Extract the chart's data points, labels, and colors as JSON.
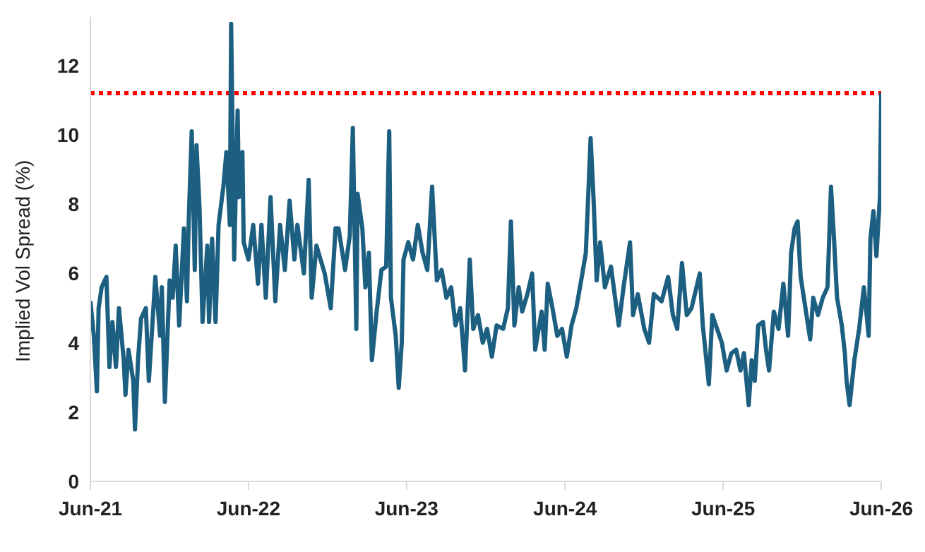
{
  "chart_data": {
    "type": "line",
    "ylabel": "Implied Vol Spread (%)",
    "x": [
      "2021-06-01",
      "2021-06-09",
      "2021-06-16",
      "2021-06-20",
      "2021-06-27",
      "2021-07-08",
      "2021-07-15",
      "2021-07-22",
      "2021-07-30",
      "2021-08-06",
      "2021-08-17",
      "2021-08-21",
      "2021-08-28",
      "2021-09-08",
      "2021-09-12",
      "2021-09-19",
      "2021-09-26",
      "2021-10-07",
      "2021-10-14",
      "2021-10-22",
      "2021-10-29",
      "2021-11-09",
      "2021-11-13",
      "2021-11-20",
      "2021-12-01",
      "2021-12-08",
      "2021-12-15",
      "2021-12-23",
      "2022-01-03",
      "2022-01-10",
      "2022-01-14",
      "2022-01-21",
      "2022-01-28",
      "2022-02-01",
      "2022-02-08",
      "2022-02-15",
      "2022-02-26",
      "2022-03-02",
      "2022-03-09",
      "2022-03-17",
      "2022-03-24",
      "2022-04-04",
      "2022-04-11",
      "2022-04-19",
      "2022-04-22",
      "2022-04-29",
      "2022-05-07",
      "2022-05-10",
      "2022-05-18",
      "2022-05-21",
      "2022-06-01",
      "2022-06-12",
      "2022-06-23",
      "2022-07-01",
      "2022-07-11",
      "2022-07-22",
      "2022-08-02",
      "2022-08-13",
      "2022-08-24",
      "2022-09-04",
      "2022-09-15",
      "2022-09-22",
      "2022-10-07",
      "2022-10-18",
      "2022-10-25",
      "2022-11-05",
      "2022-11-24",
      "2022-12-08",
      "2022-12-19",
      "2022-12-26",
      "2023-01-10",
      "2023-01-21",
      "2023-01-28",
      "2023-02-05",
      "2023-02-08",
      "2023-02-19",
      "2023-02-26",
      "2023-03-06",
      "2023-03-13",
      "2023-03-24",
      "2023-04-04",
      "2023-04-15",
      "2023-04-22",
      "2023-04-26",
      "2023-05-07",
      "2023-05-14",
      "2023-05-21",
      "2023-05-25",
      "2023-06-05",
      "2023-06-16",
      "2023-06-27",
      "2023-07-08",
      "2023-07-19",
      "2023-07-30",
      "2023-08-10",
      "2023-08-21",
      "2023-09-01",
      "2023-09-12",
      "2023-09-22",
      "2023-10-03",
      "2023-10-14",
      "2023-10-25",
      "2023-11-02",
      "2023-11-13",
      "2023-11-24",
      "2023-12-04",
      "2023-12-15",
      "2023-12-26",
      "2024-01-10",
      "2024-01-21",
      "2024-01-28",
      "2024-02-05",
      "2024-02-15",
      "2024-02-23",
      "2024-03-06",
      "2024-03-17",
      "2024-03-24",
      "2024-04-08",
      "2024-04-15",
      "2024-04-22",
      "2024-05-03",
      "2024-05-14",
      "2024-05-25",
      "2024-06-05",
      "2024-06-16",
      "2024-06-27",
      "2024-07-11",
      "2024-07-19",
      "2024-07-30",
      "2024-08-06",
      "2024-08-13",
      "2024-08-21",
      "2024-09-01",
      "2024-09-15",
      "2024-10-03",
      "2024-10-14",
      "2024-10-29",
      "2024-11-05",
      "2024-11-16",
      "2024-12-01",
      "2024-12-12",
      "2024-12-23",
      "2025-01-10",
      "2025-01-25",
      "2025-02-05",
      "2025-02-15",
      "2025-02-26",
      "2025-03-09",
      "2025-03-20",
      "2025-04-08",
      "2025-04-15",
      "2025-04-29",
      "2025-05-07",
      "2025-05-18",
      "2025-05-29",
      "2025-06-09",
      "2025-06-20",
      "2025-07-01",
      "2025-07-11",
      "2025-07-19",
      "2025-07-30",
      "2025-08-06",
      "2025-08-13",
      "2025-08-21",
      "2025-09-01",
      "2025-09-08",
      "2025-09-15",
      "2025-09-26",
      "2025-10-07",
      "2025-10-18",
      "2025-10-29",
      "2025-11-05",
      "2025-11-13",
      "2025-11-20",
      "2025-11-27",
      "2025-12-08",
      "2025-12-19",
      "2025-12-26",
      "2026-01-06",
      "2026-01-17",
      "2026-01-28",
      "2026-02-05",
      "2026-02-12",
      "2026-02-19",
      "2026-03-02",
      "2026-03-09",
      "2026-03-13",
      "2026-03-20",
      "2026-03-31",
      "2026-04-11",
      "2026-04-22",
      "2026-05-03",
      "2026-05-07",
      "2026-05-14",
      "2026-05-21",
      "2026-05-25",
      "2026-05-29",
      "2026-06-01"
    ],
    "series": [
      {
        "color": "#1c5f80",
        "values": [
          5.2,
          4.2,
          2.6,
          5.0,
          5.6,
          5.9,
          3.3,
          4.6,
          3.3,
          5.0,
          3.5,
          2.5,
          3.8,
          2.9,
          1.5,
          3.5,
          4.7,
          5.0,
          2.9,
          4.5,
          5.9,
          4.2,
          5.6,
          2.3,
          5.8,
          5.3,
          6.8,
          4.5,
          7.3,
          5.2,
          7.5,
          10.1,
          6.1,
          9.7,
          7.9,
          4.6,
          6.8,
          4.6,
          7.0,
          4.6,
          7.4,
          8.5,
          9.5,
          7.4,
          13.2,
          6.4,
          10.7,
          8.2,
          9.5,
          6.9,
          6.4,
          7.4,
          5.7,
          7.4,
          5.3,
          8.2,
          5.2,
          7.4,
          6.1,
          8.1,
          6.4,
          7.4,
          6.0,
          8.7,
          5.3,
          6.8,
          6.0,
          5.0,
          7.3,
          7.3,
          6.1,
          7.1,
          10.2,
          4.4,
          8.3,
          7.3,
          5.6,
          6.6,
          3.5,
          4.9,
          6.1,
          6.2,
          10.1,
          5.3,
          4.2,
          2.7,
          4.0,
          6.4,
          6.9,
          6.4,
          7.4,
          6.6,
          6.1,
          8.5,
          5.8,
          6.1,
          5.3,
          5.6,
          4.5,
          5.0,
          3.2,
          6.4,
          4.4,
          4.8,
          4.0,
          4.4,
          3.6,
          4.5,
          4.4,
          5.0,
          7.5,
          4.5,
          5.6,
          4.9,
          5.4,
          6.0,
          3.8,
          4.9,
          3.8,
          5.7,
          5.0,
          4.2,
          4.4,
          3.6,
          4.5,
          5.0,
          6.0,
          6.6,
          9.9,
          8.1,
          5.8,
          6.9,
          5.6,
          6.2,
          4.5,
          5.6,
          6.9,
          4.8,
          5.4,
          4.4,
          4.0,
          5.4,
          5.2,
          5.9,
          4.8,
          4.4,
          6.3,
          4.8,
          5.0,
          6.0,
          4.5,
          2.8,
          4.8,
          4.4,
          4.0,
          3.2,
          3.7,
          3.8,
          3.2,
          3.7,
          2.2,
          3.5,
          2.9,
          4.5,
          4.6,
          3.8,
          3.2,
          4.9,
          4.4,
          5.7,
          4.2,
          6.6,
          7.3,
          7.5,
          5.9,
          5.0,
          4.1,
          5.3,
          4.8,
          5.3,
          5.6,
          8.5,
          7.0,
          5.3,
          4.5,
          3.7,
          2.9,
          2.2,
          3.5,
          4.4,
          5.6,
          4.2,
          7.0,
          7.8,
          6.5,
          7.4,
          8.2,
          11.2
        ]
      }
    ],
    "xlim": [
      "2021-06-01",
      "2026-06-01"
    ],
    "xticks": [
      {
        "value": "2021-06-01",
        "label": "Jun-21"
      },
      {
        "value": "2022-06-01",
        "label": "Jun-22"
      },
      {
        "value": "2023-06-01",
        "label": "Jun-23"
      },
      {
        "value": "2024-06-01",
        "label": "Jun-24"
      },
      {
        "value": "2025-06-01",
        "label": "Jun-25"
      },
      {
        "value": "2026-06-01",
        "label": "Jun-26"
      }
    ],
    "ylim": [
      0,
      13.4
    ],
    "yticks": [
      0,
      2,
      4,
      6,
      8,
      10,
      12
    ],
    "ref_lines": [
      {
        "axis": "y",
        "value": 11.2,
        "color": "#ff0000",
        "line_style": "dotted"
      }
    ],
    "grid": false,
    "legend": false,
    "marker": "none",
    "line_style": "solid"
  }
}
